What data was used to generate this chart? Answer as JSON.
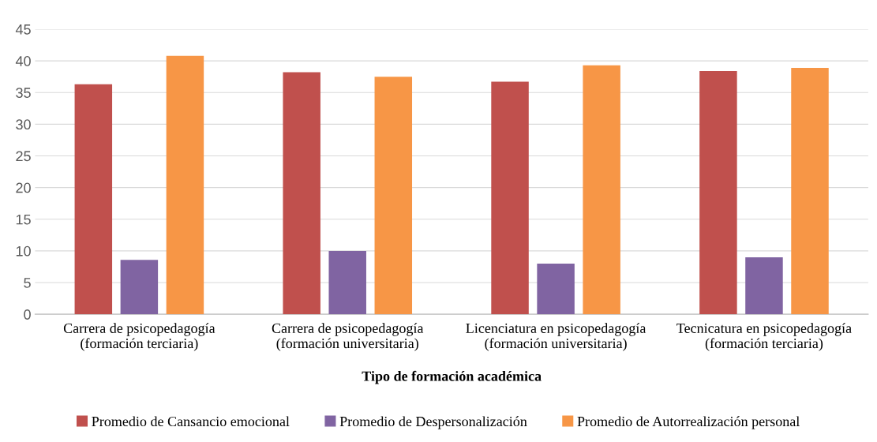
{
  "chart_data": {
    "type": "bar",
    "xlabel": "Tipo de formación académica",
    "categories": [
      "Carrera de psicopedagogía\n(formación terciaria)",
      "Carrera de psicopedagogía\n(formación universitaria)",
      "Licenciatura en psicopedagogía\n(formación universitaria)",
      "Tecnicatura en psicopedagogía\n(formación terciaria)"
    ],
    "series": [
      {
        "name": "Promedio de Cansancio emocional",
        "color": "#c0504d",
        "values": [
          36.3,
          38.2,
          36.7,
          38.4
        ]
      },
      {
        "name": "Promedio de Despersonalización",
        "color": "#8064a2",
        "values": [
          8.6,
          10.0,
          8.0,
          9.0
        ]
      },
      {
        "name": "Promedio de Autorrealización personal",
        "color": "#f79646",
        "values": [
          40.8,
          37.5,
          39.3,
          38.9
        ]
      }
    ],
    "ylim": [
      0,
      45
    ],
    "yticks": [
      0,
      5,
      10,
      15,
      20,
      25,
      30,
      35,
      40,
      45
    ],
    "grid": "y",
    "legend": "bottom"
  }
}
